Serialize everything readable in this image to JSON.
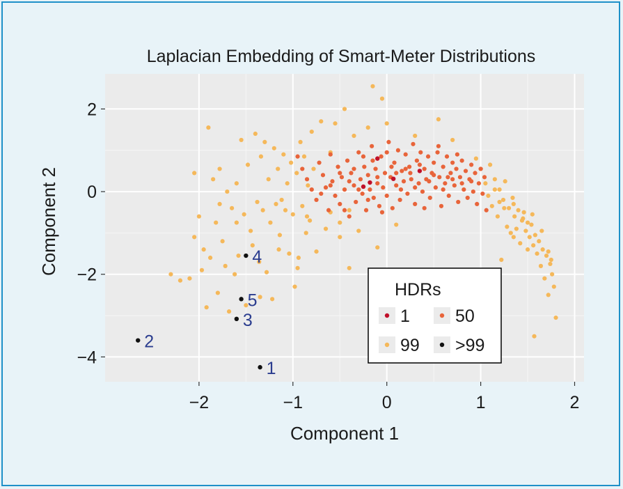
{
  "chart_data": {
    "type": "scatter",
    "title": "Laplacian Embedding of Smart-Meter Distributions",
    "xlabel": "Component 1",
    "ylabel": "Component 2",
    "xlim": [
      -3.0,
      2.1
    ],
    "ylim": [
      -4.6,
      2.85
    ],
    "xticks": [
      -2,
      -1,
      0,
      1,
      2
    ],
    "yticks": [
      2,
      0,
      -2,
      -4
    ],
    "grid": true,
    "legend": {
      "title": "HDRs",
      "placement": "bottom-right",
      "entries": [
        {
          "label": "1",
          "color": "#c0102a"
        },
        {
          "label": "50",
          "color": "#e8643a"
        },
        {
          "label": "99",
          "color": "#f5b85a"
        },
        {
          "label": ">99",
          "color": "#111111"
        }
      ]
    },
    "series": [
      {
        "name": "1",
        "color": "#c0102a",
        "points": [
          [
            -0.1,
            0.8
          ],
          [
            -0.18,
            0.22
          ],
          [
            0.07,
            0.31
          ],
          [
            0.35,
            0.5
          ],
          [
            -0.25,
            0.12
          ]
        ]
      },
      {
        "name": "50",
        "color": "#e8643a",
        "points": [
          [
            -0.95,
            0.85
          ],
          [
            -0.9,
            0.55
          ],
          [
            -0.85,
            0.3
          ],
          [
            -0.8,
            0.05
          ],
          [
            -0.75,
            -0.2
          ],
          [
            -0.72,
            0.7
          ],
          [
            -0.68,
            0.4
          ],
          [
            -0.65,
            0.1
          ],
          [
            -0.62,
            -0.45
          ],
          [
            -0.6,
            0.9
          ],
          [
            -0.58,
            0.25
          ],
          [
            -0.55,
            -0.1
          ],
          [
            -0.52,
            0.6
          ],
          [
            -0.5,
            -0.3
          ],
          [
            -0.48,
            0.35
          ],
          [
            -0.45,
            0.05
          ],
          [
            -0.42,
            0.75
          ],
          [
            -0.4,
            -0.6
          ],
          [
            -0.38,
            0.45
          ],
          [
            -0.35,
            0.15
          ],
          [
            -0.33,
            -0.25
          ],
          [
            -0.3,
            0.95
          ],
          [
            -0.28,
            0.3
          ],
          [
            -0.26,
            -0.05
          ],
          [
            -0.24,
            0.6
          ],
          [
            -0.22,
            -0.45
          ],
          [
            -0.2,
            0.4
          ],
          [
            -0.18,
            0.05
          ],
          [
            -0.16,
            1.1
          ],
          [
            -0.14,
            -0.15
          ],
          [
            -0.12,
            0.55
          ],
          [
            -0.1,
            0.2
          ],
          [
            -0.08,
            -0.35
          ],
          [
            -0.06,
            0.85
          ],
          [
            -0.04,
            0.1
          ],
          [
            -0.02,
            0.45
          ],
          [
            0.0,
            -0.1
          ],
          [
            0.02,
            1.2
          ],
          [
            0.04,
            0.35
          ],
          [
            0.06,
            -0.4
          ],
          [
            0.08,
            0.7
          ],
          [
            0.1,
            0.15
          ],
          [
            0.12,
            1.0
          ],
          [
            0.14,
            -0.2
          ],
          [
            0.16,
            0.5
          ],
          [
            0.18,
            0.25
          ],
          [
            0.2,
            0.9
          ],
          [
            0.22,
            -0.05
          ],
          [
            0.24,
            0.6
          ],
          [
            0.26,
            0.3
          ],
          [
            0.28,
            1.15
          ],
          [
            0.3,
            -0.3
          ],
          [
            0.32,
            0.75
          ],
          [
            0.34,
            0.2
          ],
          [
            0.36,
            0.95
          ],
          [
            0.38,
            0.0
          ],
          [
            0.4,
            0.55
          ],
          [
            0.42,
            0.3
          ],
          [
            0.44,
            0.85
          ],
          [
            0.46,
            -0.15
          ],
          [
            0.48,
            0.45
          ],
          [
            0.5,
            0.7
          ],
          [
            0.52,
            0.1
          ],
          [
            0.54,
            0.95
          ],
          [
            0.56,
            0.35
          ],
          [
            0.58,
            -0.35
          ],
          [
            0.6,
            0.6
          ],
          [
            0.62,
            0.2
          ],
          [
            0.64,
            0.85
          ],
          [
            0.66,
            -0.1
          ],
          [
            0.68,
            0.45
          ],
          [
            0.7,
            0.7
          ],
          [
            0.72,
            0.15
          ],
          [
            0.74,
            0.55
          ],
          [
            0.76,
            -0.25
          ],
          [
            0.78,
            0.35
          ],
          [
            0.8,
            0.75
          ],
          [
            0.82,
            0.05
          ],
          [
            0.84,
            0.5
          ],
          [
            0.86,
            -0.15
          ],
          [
            0.88,
            0.3
          ],
          [
            0.9,
            0.65
          ],
          [
            0.92,
            0.0
          ],
          [
            0.94,
            0.45
          ],
          [
            0.96,
            -0.3
          ],
          [
            0.98,
            0.2
          ],
          [
            1.0,
            0.55
          ],
          [
            1.02,
            -0.05
          ],
          [
            1.04,
            0.35
          ],
          [
            1.06,
            -0.45
          ],
          [
            -0.35,
            0.55
          ],
          [
            -0.15,
            0.75
          ],
          [
            0.05,
            0.6
          ],
          [
            0.25,
            0.45
          ],
          [
            0.45,
            0.25
          ],
          [
            0.65,
            0.35
          ],
          [
            -0.6,
            0.15
          ],
          [
            -0.4,
            0.25
          ],
          [
            0.15,
            0.05
          ],
          [
            0.35,
            0.65
          ],
          [
            -0.5,
            0.45
          ],
          [
            -0.3,
            0.05
          ],
          [
            -0.1,
            0.35
          ],
          [
            0.1,
            0.45
          ],
          [
            0.3,
            0.1
          ],
          [
            0.5,
            0.4
          ],
          [
            0.7,
            0.3
          ],
          [
            0.9,
            0.25
          ],
          [
            -0.7,
            -0.05
          ],
          [
            -0.2,
            -0.2
          ],
          [
            0.0,
            0.95
          ],
          [
            0.2,
            0.55
          ],
          [
            0.4,
            -0.4
          ],
          [
            0.6,
            0.05
          ],
          [
            0.8,
            0.2
          ],
          [
            -0.45,
            -0.45
          ],
          [
            -0.25,
            0.85
          ],
          [
            -0.05,
            -0.5
          ],
          [
            0.55,
            1.1
          ],
          [
            0.75,
            0.9
          ]
        ]
      },
      {
        "name": "99",
        "color": "#f5b85a",
        "points": [
          [
            -2.3,
            -2.0
          ],
          [
            -2.2,
            -2.15
          ],
          [
            -2.1,
            -2.1
          ],
          [
            -2.05,
            0.45
          ],
          [
            -2.0,
            -0.6
          ],
          [
            -1.97,
            -1.9
          ],
          [
            -1.95,
            -1.4
          ],
          [
            -1.92,
            -2.8
          ],
          [
            -1.9,
            1.55
          ],
          [
            -1.88,
            -1.6
          ],
          [
            -1.85,
            0.3
          ],
          [
            -1.82,
            -0.75
          ],
          [
            -1.8,
            -2.45
          ],
          [
            -1.78,
            0.55
          ],
          [
            -1.75,
            -1.2
          ],
          [
            -1.72,
            -1.8
          ],
          [
            -1.7,
            0.0
          ],
          [
            -1.68,
            -2.9
          ],
          [
            -1.65,
            -0.4
          ],
          [
            -1.62,
            -2.0
          ],
          [
            -1.6,
            0.2
          ],
          [
            -1.58,
            -1.55
          ],
          [
            -1.55,
            1.25
          ],
          [
            -1.52,
            -0.55
          ],
          [
            -1.5,
            -2.75
          ],
          [
            -1.48,
            0.65
          ],
          [
            -1.45,
            -0.95
          ],
          [
            -1.43,
            -1.3
          ],
          [
            -1.4,
            1.4
          ],
          [
            -1.38,
            -0.25
          ],
          [
            -1.36,
            -1.7
          ],
          [
            -1.34,
            0.85
          ],
          [
            -1.32,
            -0.45
          ],
          [
            -1.3,
            1.2
          ],
          [
            -1.28,
            -1.95
          ],
          [
            -1.26,
            0.3
          ],
          [
            -1.24,
            -0.75
          ],
          [
            -1.22,
            -2.6
          ],
          [
            -1.2,
            1.05
          ],
          [
            -1.18,
            -0.3
          ],
          [
            -1.16,
            0.55
          ],
          [
            -1.14,
            -1.05
          ],
          [
            -1.12,
            -0.2
          ],
          [
            -1.1,
            0.9
          ],
          [
            -1.08,
            -0.45
          ],
          [
            -1.06,
            0.2
          ],
          [
            -1.04,
            -1.5
          ],
          [
            -1.02,
            0.7
          ],
          [
            -1.0,
            -0.55
          ],
          [
            -0.98,
            -2.3
          ],
          [
            -0.96,
            0.45
          ],
          [
            -0.94,
            -1.6
          ],
          [
            -0.92,
            1.2
          ],
          [
            -0.9,
            -0.35
          ],
          [
            -0.88,
            0.85
          ],
          [
            -0.86,
            -1.0
          ],
          [
            -0.84,
            0.15
          ],
          [
            -0.82,
            -0.7
          ],
          [
            -0.8,
            1.45
          ],
          [
            -0.78,
            0.55
          ],
          [
            -0.75,
            -1.45
          ],
          [
            -0.7,
            1.7
          ],
          [
            -0.65,
            -0.9
          ],
          [
            -0.6,
            0.95
          ],
          [
            -0.55,
            1.65
          ],
          [
            -0.5,
            -1.1
          ],
          [
            -0.45,
            2.0
          ],
          [
            -0.4,
            -1.85
          ],
          [
            -0.35,
            1.35
          ],
          [
            -0.3,
            -0.95
          ],
          [
            -0.2,
            1.55
          ],
          [
            -0.1,
            -1.35
          ],
          [
            0.0,
            1.65
          ],
          [
            -0.15,
            2.55
          ],
          [
            -0.05,
            2.25
          ],
          [
            0.1,
            -0.8
          ],
          [
            0.3,
            1.35
          ],
          [
            0.55,
            1.75
          ],
          [
            0.7,
            1.25
          ],
          [
            0.95,
            0.8
          ],
          [
            1.0,
            0.55
          ],
          [
            1.05,
            0.2
          ],
          [
            1.08,
            -0.1
          ],
          [
            1.1,
            0.65
          ],
          [
            1.12,
            -0.35
          ],
          [
            1.15,
            0.3
          ],
          [
            1.18,
            -0.6
          ],
          [
            1.2,
            0.05
          ],
          [
            1.22,
            -1.65
          ],
          [
            1.24,
            -0.2
          ],
          [
            1.26,
            0.25
          ],
          [
            1.28,
            -0.85
          ],
          [
            1.3,
            -0.4
          ],
          [
            1.32,
            -1.0
          ],
          [
            1.34,
            -0.15
          ],
          [
            1.36,
            -0.6
          ],
          [
            1.38,
            -0.9
          ],
          [
            1.4,
            -0.45
          ],
          [
            1.42,
            -1.25
          ],
          [
            1.44,
            -0.7
          ],
          [
            1.46,
            -0.5
          ],
          [
            1.48,
            -0.95
          ],
          [
            1.5,
            -0.75
          ],
          [
            1.52,
            -1.1
          ],
          [
            1.54,
            -0.8
          ],
          [
            1.56,
            -1.3
          ],
          [
            1.58,
            -1.05
          ],
          [
            1.6,
            -1.5
          ],
          [
            1.62,
            -1.2
          ],
          [
            1.64,
            -1.8
          ],
          [
            1.66,
            -1.4
          ],
          [
            1.68,
            -2.1
          ],
          [
            1.7,
            -1.55
          ],
          [
            1.72,
            -2.5
          ],
          [
            1.74,
            -1.75
          ],
          [
            1.76,
            -2.0
          ],
          [
            1.78,
            -2.3
          ],
          [
            1.8,
            -3.05
          ],
          [
            1.57,
            -3.5
          ],
          [
            1.72,
            -1.45
          ],
          [
            -2.05,
            -1.1
          ],
          [
            -1.78,
            -0.3
          ],
          [
            -1.6,
            -0.75
          ],
          [
            -1.35,
            -2.55
          ],
          [
            -1.15,
            -1.4
          ],
          [
            -0.95,
            -1.85
          ],
          [
            -0.85,
            -0.6
          ],
          [
            -0.6,
            -0.5
          ],
          [
            -0.5,
            -0.75
          ],
          [
            -0.4,
            -0.45
          ],
          [
            1.15,
            0.05
          ],
          [
            1.25,
            -0.4
          ],
          [
            1.35,
            -0.3
          ],
          [
            1.45,
            -0.65
          ],
          [
            1.55,
            -0.55
          ],
          [
            1.65,
            -0.95
          ],
          [
            1.75,
            -1.65
          ],
          [
            1.5,
            -1.4
          ],
          [
            1.35,
            -1.1
          ],
          [
            1.2,
            -0.25
          ]
        ]
      },
      {
        "name": ">99",
        "color": "#111111",
        "points": [
          [
            -1.35,
            -4.25
          ],
          [
            -2.65,
            -3.6
          ],
          [
            -1.6,
            -3.08
          ],
          [
            -1.5,
            -1.55
          ],
          [
            -1.55,
            -2.6
          ]
        ]
      }
    ],
    "annotations": [
      {
        "text": "1",
        "x": -1.35,
        "y": -4.25
      },
      {
        "text": "2",
        "x": -2.65,
        "y": -3.6
      },
      {
        "text": "3",
        "x": -1.6,
        "y": -3.08
      },
      {
        "text": "4",
        "x": -1.5,
        "y": -1.55
      },
      {
        "text": "5",
        "x": -1.55,
        "y": -2.6
      }
    ]
  }
}
